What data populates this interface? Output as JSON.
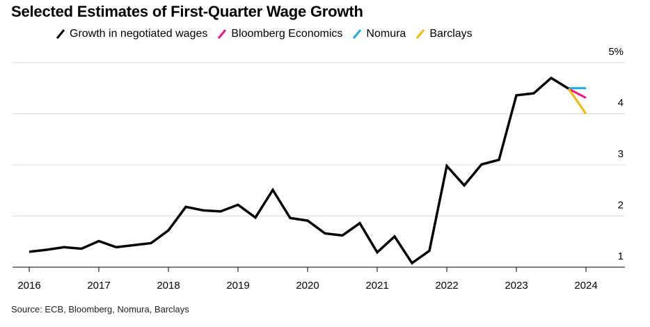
{
  "title": "Selected Estimates of First-Quarter Wage Growth",
  "source": "Source: ECB, Bloomberg, Nomura, Barclays",
  "chart_data": {
    "type": "line",
    "title": "Selected Estimates of First-Quarter Wage Growth",
    "xlabel": "",
    "ylabel": "",
    "x_ticks": [
      "2016",
      "2017",
      "2018",
      "2019",
      "2020",
      "2021",
      "2022",
      "2023",
      "2024"
    ],
    "y_ticks": [
      "1",
      "2",
      "3",
      "4",
      "5%"
    ],
    "y_tick_values": [
      1,
      2,
      3,
      4,
      5
    ],
    "xlim": [
      2016,
      2024.75
    ],
    "ylim": [
      1,
      5
    ],
    "grid": "horizontal",
    "legend_position": "top",
    "series": [
      {
        "name": "Growth in negotiated wages",
        "color": "#000000",
        "x": [
          2016.0,
          2016.25,
          2016.5,
          2016.75,
          2017.0,
          2017.25,
          2017.5,
          2017.75,
          2018.0,
          2018.25,
          2018.5,
          2018.75,
          2019.0,
          2019.25,
          2019.5,
          2019.75,
          2020.0,
          2020.25,
          2020.5,
          2020.75,
          2021.0,
          2021.25,
          2021.5,
          2021.75,
          2022.0,
          2022.25,
          2022.5,
          2022.75,
          2023.0,
          2023.25,
          2023.5,
          2023.75,
          2024.0
        ],
        "y": [
          1.3,
          1.34,
          1.39,
          1.36,
          1.51,
          1.39,
          1.43,
          1.47,
          1.72,
          2.18,
          2.11,
          2.09,
          2.22,
          1.97,
          2.51,
          1.96,
          1.91,
          1.66,
          1.62,
          1.86,
          1.29,
          1.6,
          1.08,
          1.32,
          2.98,
          2.6,
          3.01,
          3.1,
          4.36,
          4.4,
          4.7,
          4.49,
          null
        ]
      },
      {
        "name": "Bloomberg Economics",
        "color": "#e8148b",
        "x": [
          2023.75,
          2024.0
        ],
        "y": [
          4.49,
          4.31
        ]
      },
      {
        "name": "Nomura",
        "color": "#1aa7ec",
        "x": [
          2023.75,
          2024.0
        ],
        "y": [
          4.5,
          4.5
        ]
      },
      {
        "name": "Barclays",
        "color": "#f5b800",
        "x": [
          2023.75,
          2024.0
        ],
        "y": [
          4.49,
          4.0
        ]
      }
    ]
  }
}
